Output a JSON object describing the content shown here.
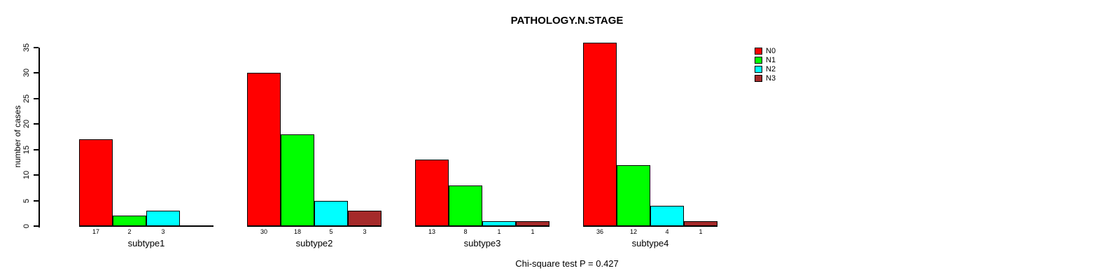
{
  "title": "PATHOLOGY.N.STAGE",
  "note": "Chi-square test P = 0.427",
  "chart_data": {
    "type": "bar",
    "title": "PATHOLOGY.N.STAGE",
    "ylabel": "number of cases",
    "xlabel": "",
    "categories": [
      "subtype1",
      "subtype2",
      "subtype3",
      "subtype4"
    ],
    "series": [
      {
        "name": "N0",
        "color": "#FF0000",
        "values": [
          17,
          30,
          13,
          36
        ]
      },
      {
        "name": "N1",
        "color": "#00FF00",
        "values": [
          2,
          18,
          8,
          12
        ]
      },
      {
        "name": "N2",
        "color": "#00FFFF",
        "values": [
          3,
          5,
          1,
          4
        ]
      },
      {
        "name": "N3",
        "color": "#A52A2A",
        "values": [
          0,
          3,
          1,
          1
        ]
      }
    ],
    "ylim": [
      0,
      35
    ],
    "yticks": [
      0,
      5,
      10,
      15,
      20,
      25,
      30,
      35
    ],
    "grid": false,
    "legend_position": "right",
    "bar_value_labels": true,
    "annotation": "Chi-square test P = 0.427"
  }
}
